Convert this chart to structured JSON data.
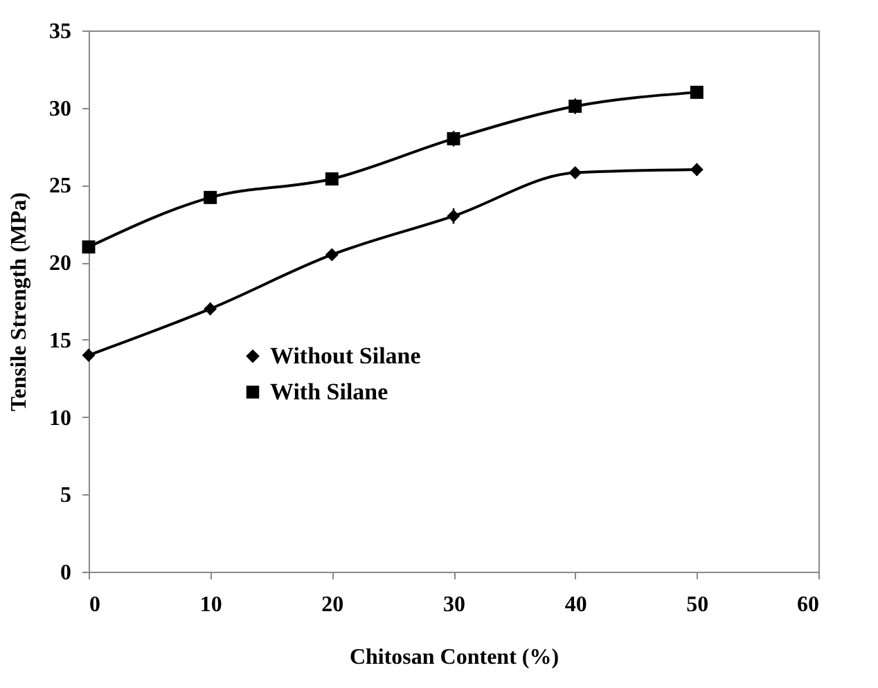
{
  "chart_data": {
    "type": "line",
    "xlabel": "Chitosan Content  (%)",
    "ylabel": "Tensile Strength (MPa)",
    "x": [
      0,
      10,
      20,
      30,
      40,
      50
    ],
    "series": [
      {
        "name": "Without Silane",
        "color": "#000000",
        "marker": "diamond",
        "values": [
          14,
          17,
          20.5,
          23,
          25.8,
          26
        ],
        "errors": [
          0.4,
          0.4,
          0.3,
          0.5,
          0.2,
          0.4
        ]
      },
      {
        "name": "With Silane",
        "color": "#000000",
        "marker": "square",
        "values": [
          21,
          24.2,
          25.4,
          28,
          30.1,
          31
        ],
        "errors": [
          0.3,
          0.4,
          0.4,
          0.5,
          0.5,
          0.3
        ]
      }
    ],
    "xlim": [
      0,
      60
    ],
    "xticks": [
      0,
      10,
      20,
      30,
      40,
      50,
      60
    ],
    "ylim": [
      0,
      35
    ],
    "yticks": [
      0,
      5,
      10,
      15,
      20,
      25,
      30,
      35
    ],
    "grid": false,
    "legend": "center left",
    "line_style": "solid"
  }
}
